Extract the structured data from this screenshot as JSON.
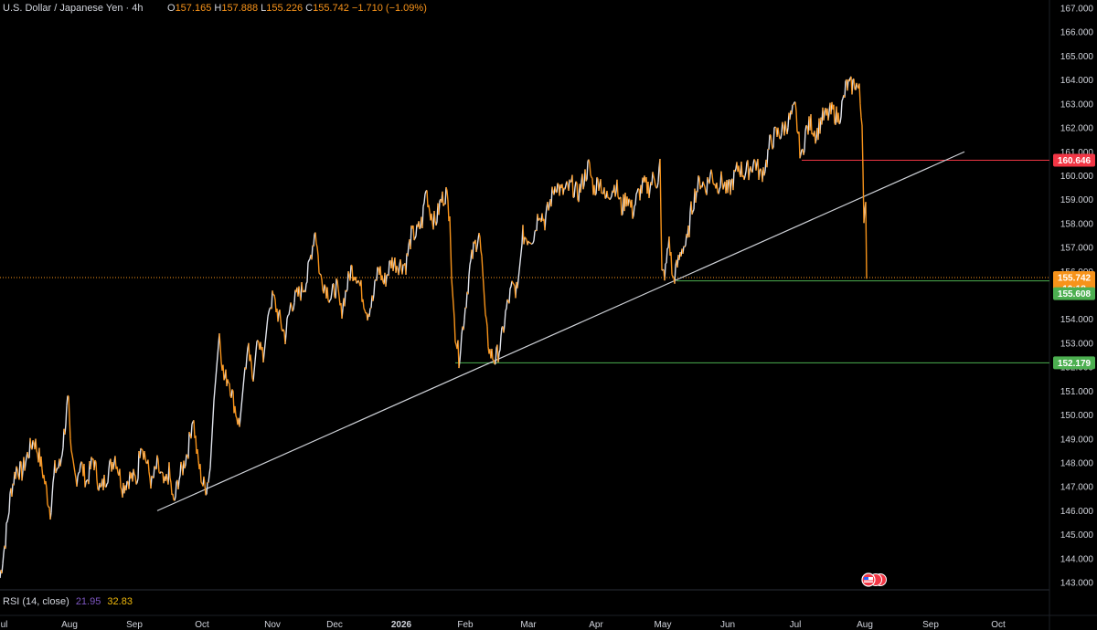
{
  "header": {
    "symbol": "U.S. Dollar / Japanese Yen · 4h",
    "o_label": "O",
    "o_value": "157.165",
    "h_label": "H",
    "h_value": "157.888",
    "l_label": "L",
    "l_value": "155.226",
    "c_label": "C",
    "c_value": "155.742",
    "change": "−1.710 (−1.09%)"
  },
  "rsi": {
    "label": "RSI (14, close)",
    "value1": "21.95",
    "value2": "32.83"
  },
  "colors": {
    "up": "#e0e3eb",
    "down": "#f7931a",
    "bg": "#000000",
    "support": "#4caf50",
    "resistance": "#f23645",
    "trend": "#cfd2d8"
  },
  "chart_data": {
    "type": "line",
    "title": "U.S. Dollar / Japanese Yen · 4h",
    "ylim": [
      143,
      167
    ],
    "y_ticks": [
      "143.000",
      "144.000",
      "145.000",
      "146.000",
      "147.000",
      "148.000",
      "149.000",
      "150.000",
      "151.000",
      "152.000",
      "153.000",
      "154.000",
      "155.000",
      "156.000",
      "157.000",
      "158.000",
      "159.000",
      "160.000",
      "161.000",
      "162.000",
      "163.000",
      "164.000",
      "165.000",
      "166.000",
      "167.000"
    ],
    "x_ticks": [
      "Jul",
      "Aug",
      "Sep",
      "Oct",
      "Nov",
      "Dec",
      "2026",
      "Feb",
      "Mar",
      "Apr",
      "May",
      "Jun",
      "Jul",
      "Aug",
      "Sep",
      "Oct"
    ],
    "series": [
      {
        "values": [
          [
            0,
            143.2
          ],
          [
            6,
            144.8
          ],
          [
            12,
            146.8
          ],
          [
            18,
            147.8
          ],
          [
            24,
            147.6
          ],
          [
            30,
            148.3
          ],
          [
            37,
            149.0
          ],
          [
            42,
            148.4
          ],
          [
            47,
            147.6
          ],
          [
            55,
            146.0
          ],
          [
            60,
            147.7
          ],
          [
            66,
            147.9
          ],
          [
            70,
            149.2
          ],
          [
            75,
            150.8
          ],
          [
            78,
            148.1
          ],
          [
            83,
            147.3
          ],
          [
            88,
            148.0
          ],
          [
            95,
            147.2
          ],
          [
            102,
            148.2
          ],
          [
            110,
            146.8
          ],
          [
            118,
            147.6
          ],
          [
            126,
            148.3
          ],
          [
            134,
            147.0
          ],
          [
            142,
            147.4
          ],
          [
            150,
            147.3
          ],
          [
            154,
            149.0
          ],
          [
            160,
            148.1
          ],
          [
            166,
            147.1
          ],
          [
            172,
            147.9
          ],
          [
            180,
            147.0
          ],
          [
            185,
            147.6
          ],
          [
            190,
            146.2
          ],
          [
            195,
            147.3
          ],
          [
            200,
            147.8
          ],
          [
            206,
            148.6
          ],
          [
            211,
            150.0
          ],
          [
            216,
            148.2
          ],
          [
            222,
            147.1
          ],
          [
            226,
            147.0
          ],
          [
            230,
            147.8
          ],
          [
            234,
            150.6
          ],
          [
            240,
            153.4
          ],
          [
            245,
            151.5
          ],
          [
            250,
            151.6
          ],
          [
            256,
            150.5
          ],
          [
            262,
            149.5
          ],
          [
            268,
            152.0
          ],
          [
            272,
            152.6
          ],
          [
            277,
            151.4
          ],
          [
            282,
            153.5
          ],
          [
            288,
            152.2
          ],
          [
            294,
            154.5
          ],
          [
            299,
            154.9
          ],
          [
            305,
            154.1
          ],
          [
            312,
            153.3
          ],
          [
            318,
            154.6
          ],
          [
            324,
            154.9
          ],
          [
            330,
            155.2
          ],
          [
            336,
            155.7
          ],
          [
            341,
            156.9
          ],
          [
            345,
            157.8
          ],
          [
            350,
            155.8
          ],
          [
            356,
            155.4
          ],
          [
            362,
            154.9
          ],
          [
            368,
            155.4
          ],
          [
            373,
            154.3
          ],
          [
            378,
            155.1
          ],
          [
            384,
            156.1
          ],
          [
            390,
            155.9
          ],
          [
            396,
            155.1
          ],
          [
            402,
            154.3
          ],
          [
            408,
            154.8
          ],
          [
            414,
            156.2
          ],
          [
            420,
            155.5
          ],
          [
            428,
            156.4
          ],
          [
            436,
            156.3
          ],
          [
            444,
            156.3
          ],
          [
            450,
            157.5
          ],
          [
            456,
            157.6
          ],
          [
            462,
            158.1
          ],
          [
            466,
            159.5
          ],
          [
            470,
            158.6
          ],
          [
            476,
            158.0
          ],
          [
            482,
            158.9
          ],
          [
            488,
            159.3
          ],
          [
            492,
            158.3
          ],
          [
            494,
            155.7
          ],
          [
            498,
            153.5
          ],
          [
            502,
            152.4
          ],
          [
            508,
            154.2
          ],
          [
            514,
            156.1
          ],
          [
            518,
            156.9
          ],
          [
            524,
            157.6
          ],
          [
            528,
            156.0
          ],
          [
            532,
            153.6
          ],
          [
            536,
            152.6
          ],
          [
            542,
            152.3
          ],
          [
            548,
            153.0
          ],
          [
            554,
            154.4
          ],
          [
            560,
            155.3
          ],
          [
            566,
            155.3
          ],
          [
            572,
            157.5
          ],
          [
            578,
            157.4
          ],
          [
            584,
            157.5
          ],
          [
            590,
            158.6
          ],
          [
            596,
            158.1
          ],
          [
            602,
            158.9
          ],
          [
            608,
            159.7
          ],
          [
            614,
            159.3
          ],
          [
            620,
            159.4
          ],
          [
            626,
            159.6
          ],
          [
            632,
            159.2
          ],
          [
            638,
            159.8
          ],
          [
            644,
            160.4
          ],
          [
            650,
            159.4
          ],
          [
            656,
            159.9
          ],
          [
            662,
            159.0
          ],
          [
            668,
            159.4
          ],
          [
            674,
            159.6
          ],
          [
            680,
            158.6
          ],
          [
            686,
            159.2
          ],
          [
            692,
            158.5
          ],
          [
            698,
            159.2
          ],
          [
            704,
            159.6
          ],
          [
            710,
            159.5
          ],
          [
            716,
            160.0
          ],
          [
            720,
            159.6
          ],
          [
            722,
            160.7
          ],
          [
            724,
            155.8
          ],
          [
            728,
            156.0
          ],
          [
            732,
            157.4
          ],
          [
            736,
            155.6
          ],
          [
            740,
            156.1
          ],
          [
            746,
            157.0
          ],
          [
            752,
            157.2
          ],
          [
            756,
            158.5
          ],
          [
            760,
            159.2
          ],
          [
            766,
            159.8
          ],
          [
            772,
            159.5
          ],
          [
            778,
            160.1
          ],
          [
            784,
            159.6
          ],
          [
            790,
            159.8
          ],
          [
            796,
            159.3
          ],
          [
            802,
            159.8
          ],
          [
            808,
            160.4
          ],
          [
            814,
            160.1
          ],
          [
            820,
            160.3
          ],
          [
            826,
            160.6
          ],
          [
            832,
            160.0
          ],
          [
            838,
            160.5
          ],
          [
            842,
            161.3
          ],
          [
            848,
            161.7
          ],
          [
            854,
            161.8
          ],
          [
            860,
            162.1
          ],
          [
            866,
            162.5
          ],
          [
            870,
            162.8
          ],
          [
            874,
            161.4
          ],
          [
            877,
            160.7
          ],
          [
            881,
            161.8
          ],
          [
            887,
            162.2
          ],
          [
            893,
            161.7
          ],
          [
            899,
            162.4
          ],
          [
            905,
            162.5
          ],
          [
            911,
            162.7
          ],
          [
            917,
            162.4
          ],
          [
            922,
            163.0
          ],
          [
            926,
            163.8
          ],
          [
            930,
            163.7
          ],
          [
            936,
            163.9
          ],
          [
            940,
            163.5
          ],
          [
            943,
            162.1
          ],
          [
            945,
            158.4
          ],
          [
            947,
            158.9
          ],
          [
            948,
            155.7
          ]
        ]
      }
    ],
    "annotations": {
      "trendline": [
        [
          172,
          146.0
        ],
        [
          1055,
          161.0
        ]
      ],
      "levels": [
        {
          "price": 160.646,
          "label": "160.646",
          "color": "#f23645"
        },
        {
          "price": 155.742,
          "label": "155.742",
          "color": "#f7931a"
        },
        {
          "price": 155.608,
          "label": "155.608",
          "color": "#4caf50"
        },
        {
          "price": 152.179,
          "label": "152.179",
          "color": "#4caf50"
        }
      ],
      "countdown": "10:18"
    },
    "grid": false,
    "legend": "none"
  }
}
